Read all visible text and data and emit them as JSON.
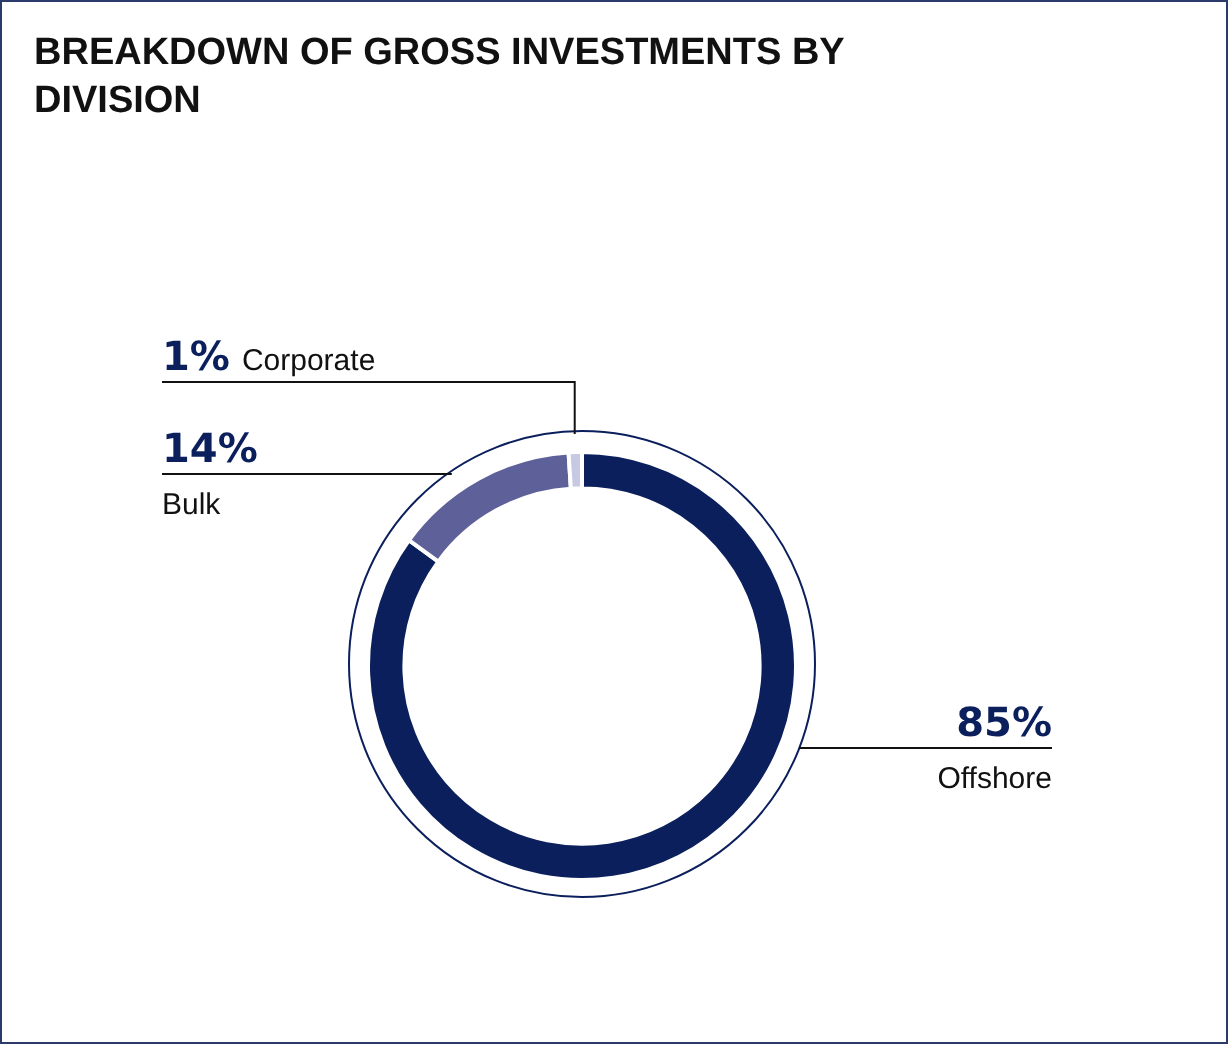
{
  "chart_data": {
    "type": "donut",
    "title": "BREAKDOWN OF GROSS INVESTMENTS BY DIVISION",
    "categories": [
      "Offshore",
      "Bulk",
      "Corporate"
    ],
    "values": [
      85,
      14,
      1
    ],
    "value_labels": [
      "85%",
      "14%",
      "1%"
    ],
    "colors": [
      "#0b1f5c",
      "#5e6199",
      "#c6c9e1"
    ],
    "legend": false
  }
}
